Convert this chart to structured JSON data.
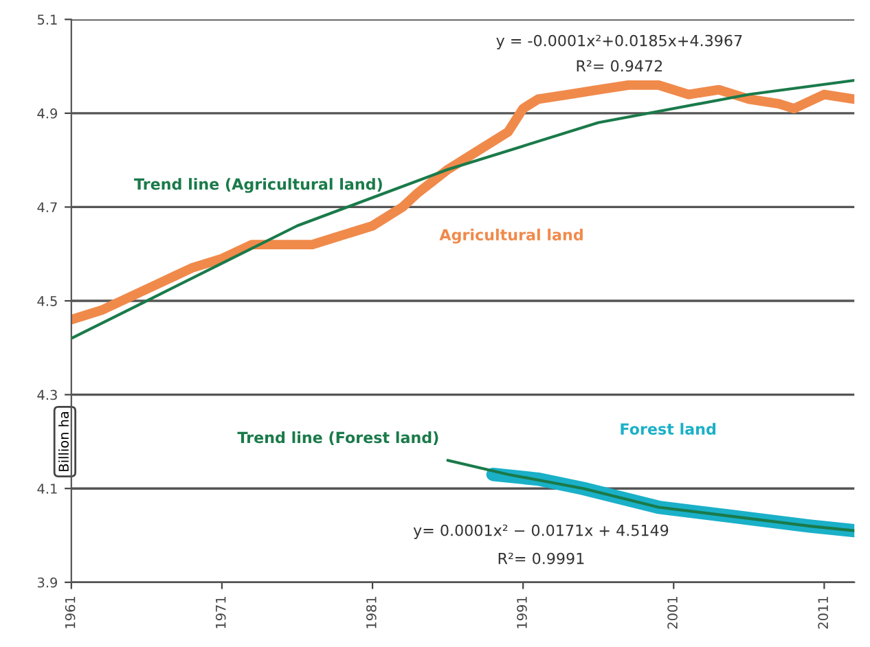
{
  "chart_data": {
    "type": "line",
    "ylabel": "Billion ha",
    "ylim": [
      3.9,
      5.1
    ],
    "yticks": [
      3.9,
      4.1,
      4.3,
      4.5,
      4.7,
      4.9,
      5.1
    ],
    "xlim": [
      1961,
      2013
    ],
    "xticks": [
      1961,
      1971,
      1981,
      1991,
      2001,
      2011
    ],
    "grid": "y",
    "legend": false,
    "series": [
      {
        "name": "Trend line (Agricultural land)",
        "color": "#1a7a4a",
        "x": [
          1961,
          1966,
          1971,
          1976,
          1981,
          1986,
          1991,
          1996,
          2001,
          2006,
          2013
        ],
        "values": [
          4.42,
          4.5,
          4.58,
          4.66,
          4.72,
          4.78,
          4.83,
          4.88,
          4.91,
          4.94,
          4.97
        ]
      },
      {
        "name": "Agricultural land",
        "color": "#f08a4b",
        "x": [
          1961,
          1963,
          1965,
          1967,
          1969,
          1971,
          1973,
          1975,
          1977,
          1979,
          1981,
          1983,
          1984,
          1986,
          1988,
          1990,
          1991,
          1992,
          1994,
          1996,
          1998,
          2000,
          2002,
          2004,
          2006,
          2008,
          2009,
          2011,
          2013
        ],
        "values": [
          4.46,
          4.48,
          4.51,
          4.54,
          4.57,
          4.59,
          4.62,
          4.62,
          4.62,
          4.64,
          4.66,
          4.7,
          4.73,
          4.78,
          4.82,
          4.86,
          4.91,
          4.93,
          4.94,
          4.95,
          4.96,
          4.96,
          4.94,
          4.95,
          4.93,
          4.92,
          4.91,
          4.94,
          4.93
        ]
      },
      {
        "name": "Forest land",
        "color": "#1ab0c8",
        "x": [
          1989,
          1992,
          1995,
          2000,
          2005,
          2010,
          2013
        ],
        "values": [
          4.13,
          4.12,
          4.1,
          4.06,
          4.04,
          4.02,
          4.01
        ]
      },
      {
        "name": "Trend line (Forest land)",
        "color": "#1a7a4a",
        "x": [
          1986,
          1990,
          1995,
          2000,
          2005,
          2010,
          2013
        ],
        "values": [
          4.16,
          4.13,
          4.1,
          4.06,
          4.04,
          4.02,
          4.01
        ]
      }
    ],
    "annotations": [
      "y = -0.0001x²+0.0185x+4.3967",
      "R²= 0.9472",
      "y= 0.0001x² − 0.0171x + 4.5149",
      "R²= 0.9991"
    ]
  }
}
